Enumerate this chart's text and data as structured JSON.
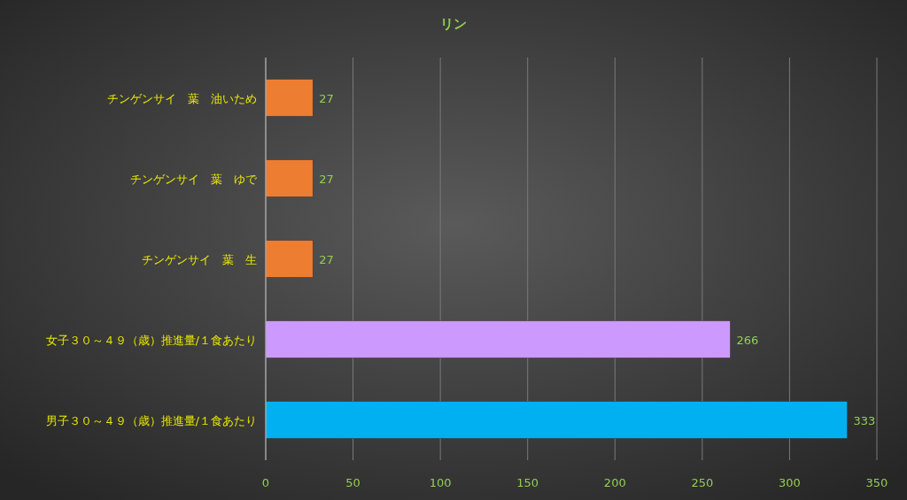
{
  "chart_data": {
    "type": "bar",
    "orientation": "horizontal",
    "title": "リン",
    "categories": [
      "チンゲンサイ　葉　油いため",
      "チンゲンサイ　葉　ゆで",
      "チンゲンサイ　葉　生",
      "女子３０～４９（歳）推進量/１食あたり",
      "男子３０～４９（歳）推進量/１食あたり"
    ],
    "values": [
      27,
      27,
      27,
      266,
      333
    ],
    "colors": [
      "#ed7d31",
      "#ed7d31",
      "#ed7d31",
      "#cc99ff",
      "#00b0f0"
    ],
    "xlim": [
      0,
      350
    ],
    "xticks": [
      0,
      50,
      100,
      150,
      200,
      250,
      300,
      350
    ],
    "grid": "x",
    "data_labels": true
  }
}
